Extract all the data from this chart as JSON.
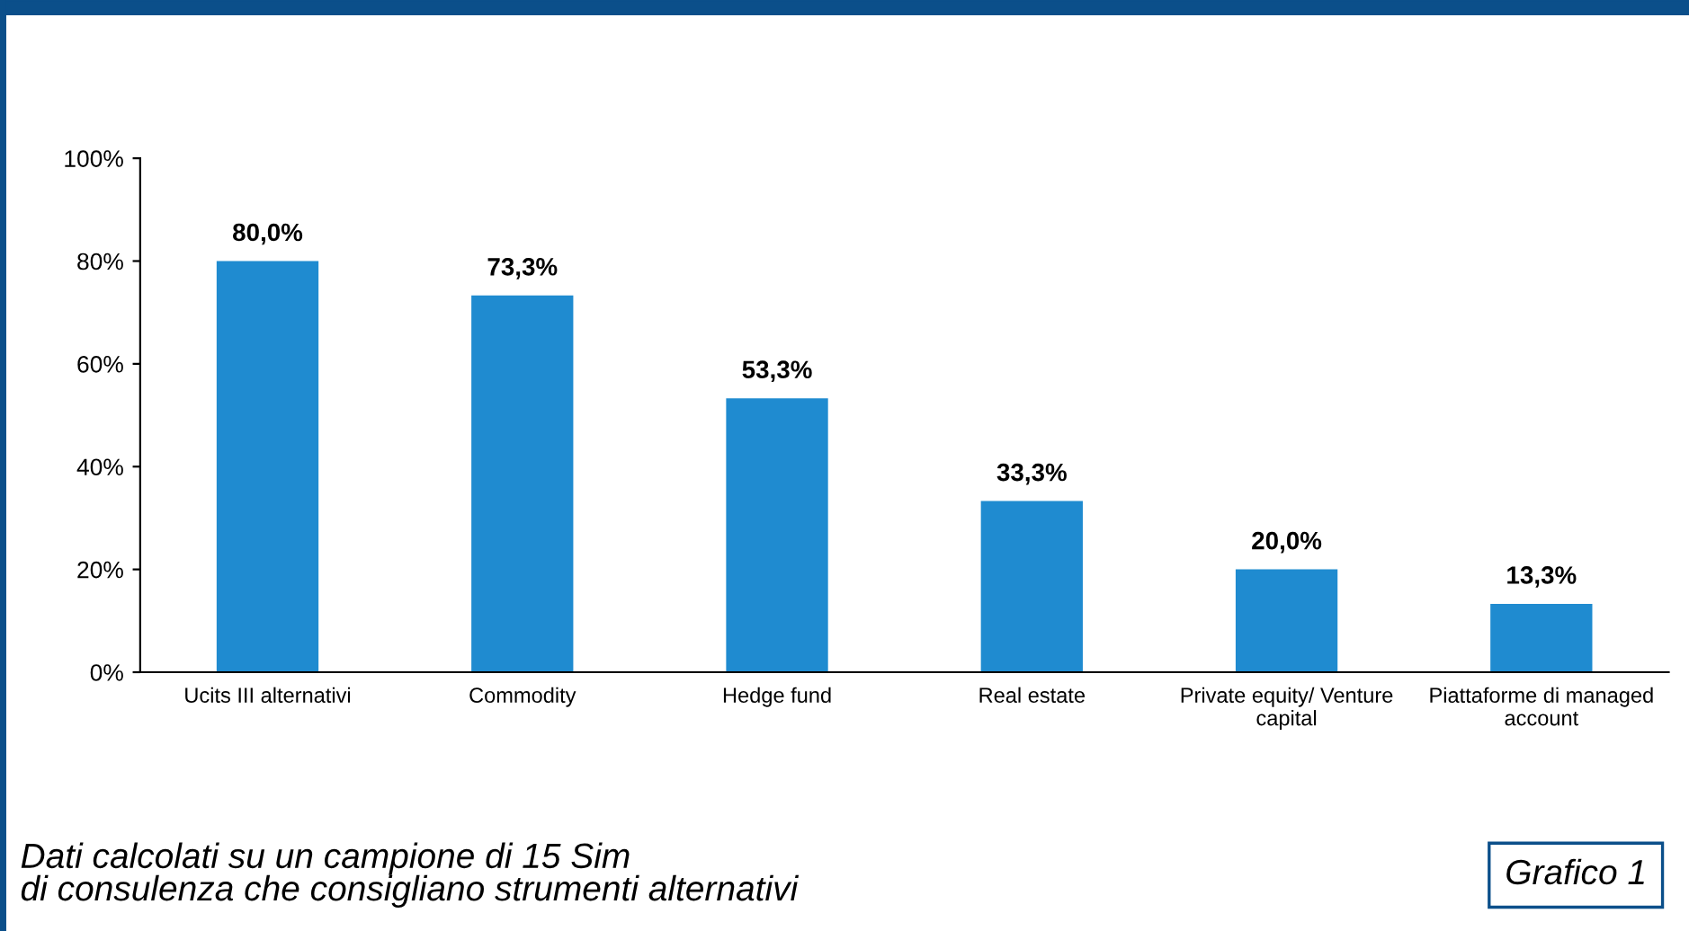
{
  "chart_data": {
    "type": "bar",
    "categories": [
      "Ucits III alternativi",
      "Commodity",
      "Hedge fund",
      "Real estate",
      "Private equity/ Venture\ncapital",
      "Piattaforme di managed\naccount"
    ],
    "values": [
      80.0,
      73.3,
      53.3,
      33.3,
      20.0,
      13.3
    ],
    "value_labels": [
      "80,0%",
      "73,3%",
      "53,3%",
      "33,3%",
      "20,0%",
      "13,3%"
    ],
    "color": "#1f8bd0",
    "ylim": [
      0,
      100
    ],
    "yticks": [
      {
        "value": 0,
        "label": "0%"
      },
      {
        "value": 20,
        "label": "20%"
      },
      {
        "value": 40,
        "label": "40%"
      },
      {
        "value": 60,
        "label": "60%"
      },
      {
        "value": 80,
        "label": "80%"
      },
      {
        "value": 100,
        "label": "100%"
      }
    ],
    "grid": false,
    "legend": false,
    "annotations": [
      "Dati calcolati su un campione di 15 Sim\ndi consulenza che consigliano strumenti alternativi",
      "Grafico 1"
    ]
  }
}
